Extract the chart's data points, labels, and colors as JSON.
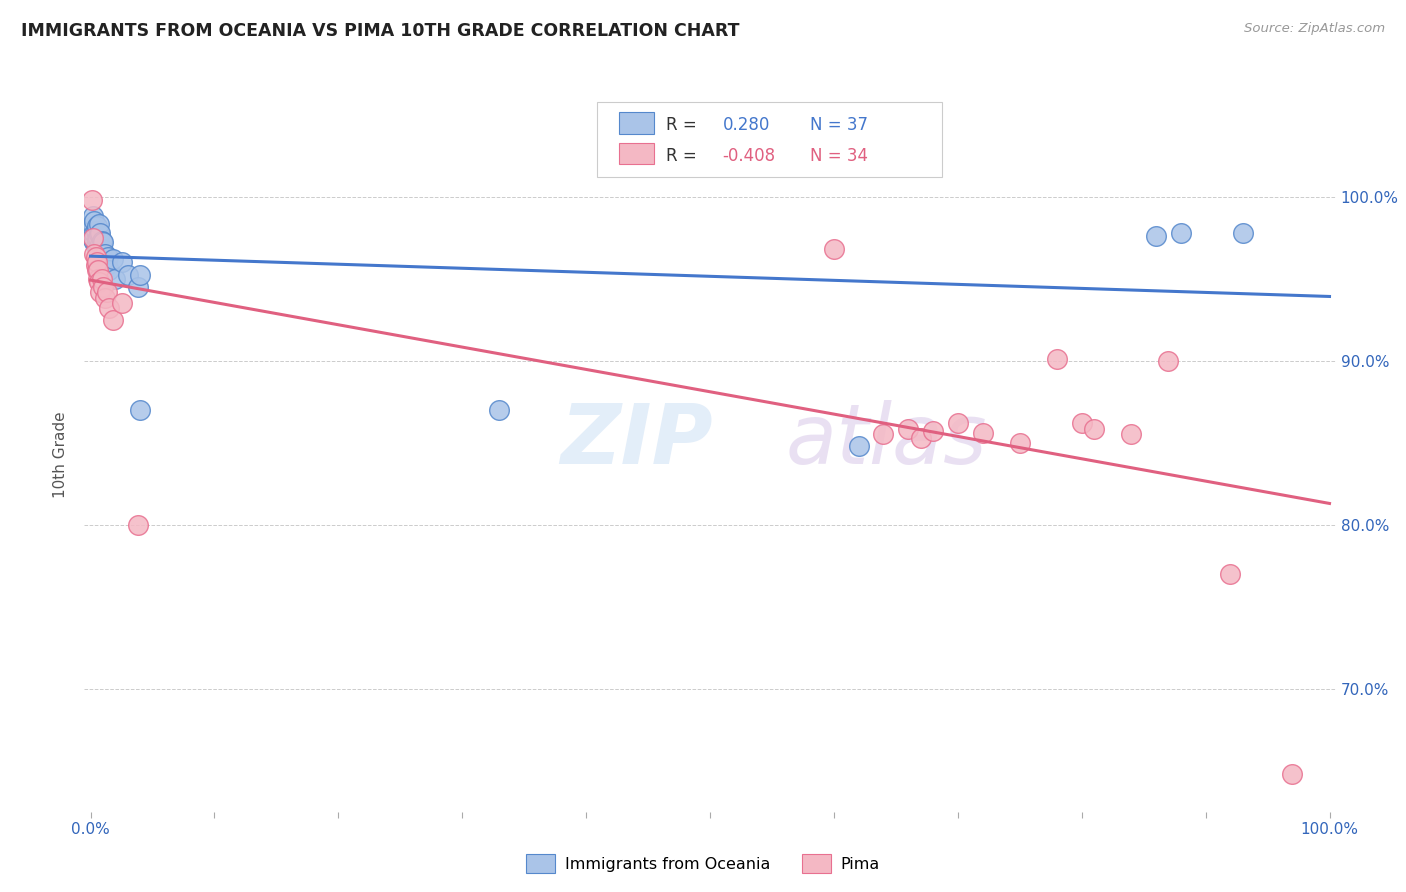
{
  "title": "IMMIGRANTS FROM OCEANIA VS PIMA 10TH GRADE CORRELATION CHART",
  "source": "Source: ZipAtlas.com",
  "ylabel": "10th Grade",
  "watermark_zip": "ZIP",
  "watermark_atlas": "atlas",
  "blue_color": "#aac4e8",
  "pink_color": "#f4b8c4",
  "blue_edge_color": "#5588cc",
  "pink_edge_color": "#e87090",
  "blue_line_color": "#4477cc",
  "pink_line_color": "#e06080",
  "r_blue": "0.280",
  "n_blue": "37",
  "r_pink": "-0.408",
  "n_pink": "34",
  "ymin": 0.625,
  "ymax": 1.06,
  "xmin": -0.005,
  "xmax": 1.005,
  "ytick_positions": [
    0.7,
    0.8,
    0.9,
    1.0
  ],
  "ytick_labels": [
    "70.0%",
    "80.0%",
    "90.0%",
    "100.0%"
  ],
  "blue_x": [
    0.001,
    0.002,
    0.002,
    0.003,
    0.003,
    0.003,
    0.004,
    0.004,
    0.005,
    0.005,
    0.006,
    0.006,
    0.007,
    0.007,
    0.008,
    0.008,
    0.009,
    0.009,
    0.01,
    0.01,
    0.011,
    0.012,
    0.013,
    0.014,
    0.015,
    0.018,
    0.02,
    0.025,
    0.03,
    0.038,
    0.04,
    0.04,
    0.33,
    0.62,
    0.86,
    0.88,
    0.93
  ],
  "blue_y": [
    0.975,
    0.982,
    0.988,
    0.972,
    0.978,
    0.985,
    0.97,
    0.979,
    0.974,
    0.982,
    0.968,
    0.975,
    0.977,
    0.983,
    0.971,
    0.978,
    0.968,
    0.973,
    0.965,
    0.972,
    0.96,
    0.965,
    0.958,
    0.963,
    0.955,
    0.962,
    0.95,
    0.96,
    0.952,
    0.945,
    0.952,
    0.87,
    0.87,
    0.848,
    0.976,
    0.978,
    0.978
  ],
  "pink_x": [
    0.001,
    0.002,
    0.003,
    0.004,
    0.004,
    0.005,
    0.005,
    0.006,
    0.006,
    0.007,
    0.008,
    0.009,
    0.01,
    0.012,
    0.013,
    0.015,
    0.018,
    0.025,
    0.038,
    0.6,
    0.64,
    0.66,
    0.67,
    0.68,
    0.7,
    0.72,
    0.75,
    0.78,
    0.8,
    0.81,
    0.84,
    0.87,
    0.92,
    0.97
  ],
  "pink_y": [
    0.998,
    0.975,
    0.965,
    0.958,
    0.963,
    0.955,
    0.96,
    0.95,
    0.955,
    0.948,
    0.942,
    0.95,
    0.945,
    0.938,
    0.942,
    0.932,
    0.925,
    0.935,
    0.8,
    0.968,
    0.855,
    0.858,
    0.853,
    0.857,
    0.862,
    0.856,
    0.85,
    0.901,
    0.862,
    0.858,
    0.855,
    0.9,
    0.77,
    0.648
  ]
}
